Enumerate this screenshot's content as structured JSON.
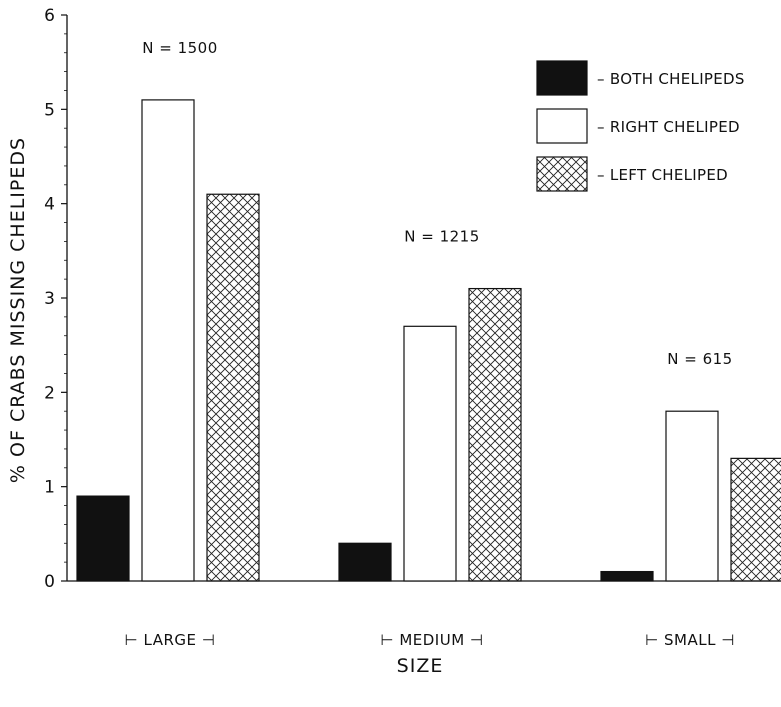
{
  "chart_data": {
    "type": "bar",
    "title": "",
    "xlabel": "SIZE",
    "ylabel": "% OF CRABS MISSING CHELIPEDS",
    "ylim": [
      0,
      6
    ],
    "yticks": [
      "0",
      "1",
      "2",
      "3",
      "4",
      "5",
      "6"
    ],
    "categories": [
      "LARGE",
      "MEDIUM",
      "SMALL"
    ],
    "category_labels": [
      "⊢ LARGE ⊣",
      "⊢ MEDIUM ⊣",
      "⊢ SMALL ⊣"
    ],
    "sample_sizes": [
      "N = 1500",
      "N = 1215",
      "N = 615"
    ],
    "series": [
      {
        "name": "BOTH CHELIPEDS",
        "legend_label": "– BOTH CHELIPEDS",
        "values": [
          0.9,
          0.4,
          0.1
        ],
        "fill": "solid",
        "color": "#111111"
      },
      {
        "name": "RIGHT CHELIPED",
        "legend_label": "– RIGHT CHELIPED",
        "values": [
          5.1,
          2.7,
          1.8
        ],
        "fill": "open",
        "color": "#ffffff"
      },
      {
        "name": "LEFT CHELIPED",
        "legend_label": "– LEFT CHELIPED",
        "values": [
          4.1,
          3.1,
          1.3
        ],
        "fill": "crosshatch",
        "color": "#ffffff"
      }
    ],
    "grid": false,
    "legend_position": "top-right"
  }
}
